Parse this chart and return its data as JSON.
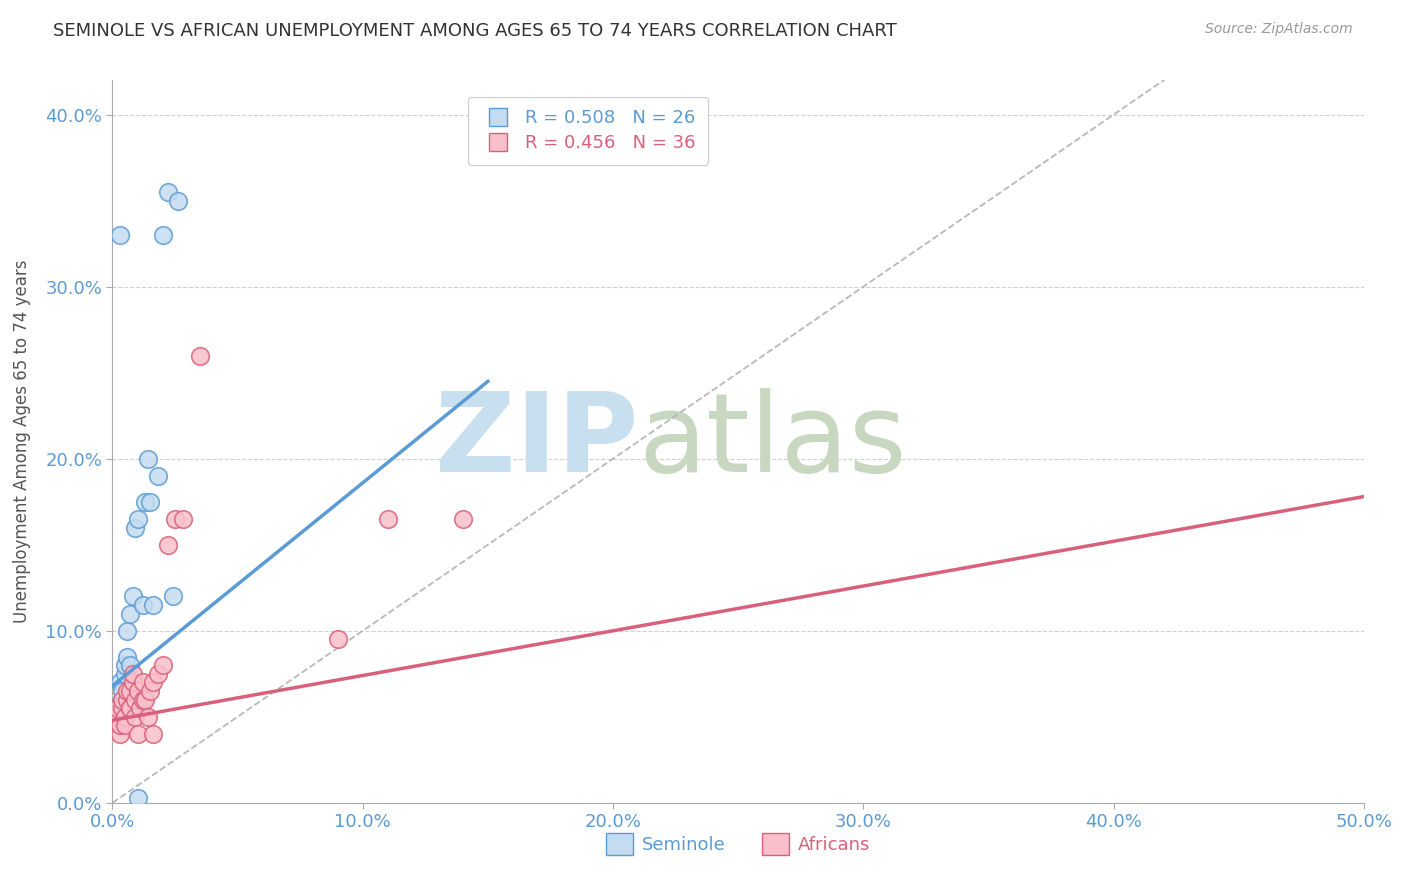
{
  "title": "SEMINOLE VS AFRICAN UNEMPLOYMENT AMONG AGES 65 TO 74 YEARS CORRELATION CHART",
  "source": "Source: ZipAtlas.com",
  "ylabel": "Unemployment Among Ages 65 to 74 years",
  "xlim": [
    0.0,
    0.5
  ],
  "ylim": [
    0.0,
    0.42
  ],
  "xticks": [
    0.0,
    0.1,
    0.2,
    0.3,
    0.4,
    0.5
  ],
  "yticks": [
    0.0,
    0.1,
    0.2,
    0.3,
    0.4
  ],
  "seminole_R": 0.508,
  "seminole_N": 26,
  "africans_R": 0.456,
  "africans_N": 36,
  "seminole_color": "#c5dcf0",
  "africans_color": "#f9c0cb",
  "trendline_seminole_color": "#5b9bd5",
  "trendline_africans_color": "#d9607a",
  "diagonal_color": "#b8b8b8",
  "seminole_x": [
    0.002,
    0.003,
    0.003,
    0.004,
    0.004,
    0.005,
    0.005,
    0.006,
    0.006,
    0.007,
    0.007,
    0.008,
    0.009,
    0.01,
    0.01,
    0.012,
    0.013,
    0.014,
    0.015,
    0.016,
    0.018,
    0.02,
    0.022,
    0.024,
    0.026,
    0.003
  ],
  "seminole_y": [
    0.05,
    0.055,
    0.07,
    0.06,
    0.065,
    0.075,
    0.08,
    0.085,
    0.1,
    0.11,
    0.08,
    0.12,
    0.16,
    0.165,
    0.003,
    0.115,
    0.175,
    0.2,
    0.175,
    0.115,
    0.19,
    0.33,
    0.355,
    0.12,
    0.35,
    0.33
  ],
  "africans_x": [
    0.002,
    0.002,
    0.003,
    0.003,
    0.004,
    0.004,
    0.005,
    0.005,
    0.006,
    0.006,
    0.007,
    0.007,
    0.007,
    0.008,
    0.008,
    0.009,
    0.009,
    0.01,
    0.01,
    0.011,
    0.012,
    0.012,
    0.013,
    0.014,
    0.015,
    0.016,
    0.016,
    0.018,
    0.02,
    0.022,
    0.025,
    0.028,
    0.035,
    0.09,
    0.11,
    0.14
  ],
  "africans_y": [
    0.05,
    0.055,
    0.04,
    0.045,
    0.055,
    0.06,
    0.05,
    0.045,
    0.06,
    0.065,
    0.055,
    0.055,
    0.065,
    0.07,
    0.075,
    0.05,
    0.06,
    0.065,
    0.04,
    0.055,
    0.07,
    0.06,
    0.06,
    0.05,
    0.065,
    0.07,
    0.04,
    0.075,
    0.08,
    0.15,
    0.165,
    0.165,
    0.26,
    0.095,
    0.165,
    0.165
  ],
  "trendline_seminole_x0": 0.0,
  "trendline_seminole_y0": 0.068,
  "trendline_seminole_x1": 0.15,
  "trendline_seminole_y1": 0.245,
  "trendline_africans_x0": 0.0,
  "trendline_africans_y0": 0.048,
  "trendline_africans_x1": 0.5,
  "trendline_africans_y1": 0.178,
  "watermark_zip": "ZIP",
  "watermark_atlas": "atlas",
  "watermark_color_zip": "#c8dff0",
  "watermark_color_atlas": "#c8d8c0",
  "background_color": "#ffffff",
  "grid_color": "#d0d0d0"
}
